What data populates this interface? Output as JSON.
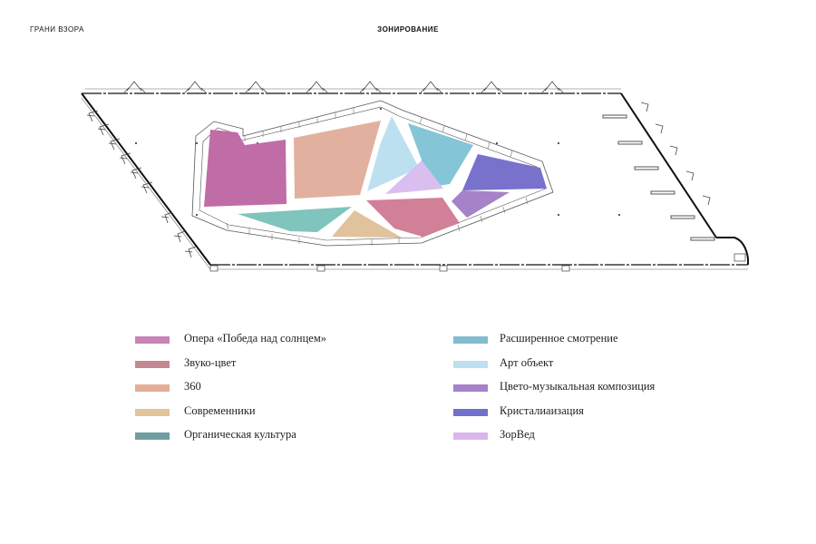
{
  "header": {
    "brand": "ГРАНИ ВЗОРА",
    "title": "ЗОНИРОВАНИЕ"
  },
  "zones": [
    {
      "id": "opera",
      "label": "Опера «Победа над солнцем»",
      "color": "#bf6ca7"
    },
    {
      "id": "zvuko-cvet",
      "label": "Звуко-цвет",
      "color": "#d27f98"
    },
    {
      "id": "360",
      "label": "360",
      "color": "#e2b09f"
    },
    {
      "id": "sovremenniki",
      "label": "Современники",
      "color": "#e0c29c"
    },
    {
      "id": "organic",
      "label": "Органическая культура",
      "color": "#7fc4bd"
    },
    {
      "id": "extended",
      "label": "Расширенное смотрение",
      "color": "#84c5d8"
    },
    {
      "id": "art-object",
      "label": "Арт объект",
      "color": "#bde0f0"
    },
    {
      "id": "color-music",
      "label": "Цвето-музыкальная композиция",
      "color": "#a682c8"
    },
    {
      "id": "crystal",
      "label": "Кристалиаизация",
      "color": "#7872cc"
    },
    {
      "id": "zorved",
      "label": "ЗорВед",
      "color": "#d9bff0"
    }
  ],
  "legend_swatch_colors": {
    "opera": "#c784b7",
    "zvuko-cvet": "#c48893",
    "360": "#e3af98",
    "sovremenniki": "#e2c49a",
    "organic": "#6f9da2",
    "extended": "#84bccd",
    "art-object": "#bde0f0",
    "color-music": "#a682c8",
    "crystal": "#7270cc",
    "zorved": "#dab6ec"
  }
}
